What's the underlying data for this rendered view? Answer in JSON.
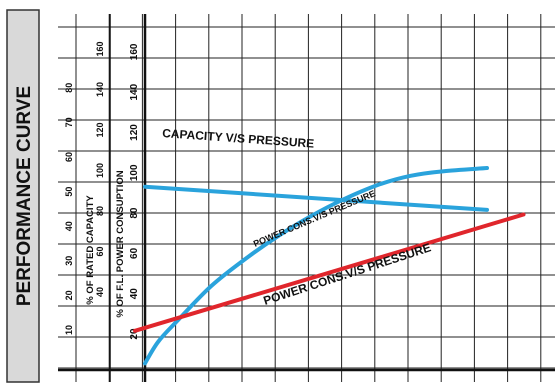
{
  "side_title": "PERFORMANCE CURVE",
  "chart_data": {
    "type": "line",
    "xlabel": "",
    "x_axis_title": "",
    "y_axes": [
      {
        "title": "% OF RATED CAPACITY",
        "ticks": [
          "10",
          "20",
          "30",
          "40",
          "50",
          "60",
          "70",
          "80"
        ]
      },
      {
        "title": "% OF F.L. POWER CONSUPTION",
        "ticks": [
          "40",
          "60",
          "80",
          "100",
          "120",
          "140",
          "160"
        ]
      },
      {
        "ticks": [
          "20",
          "40",
          "60",
          "80",
          "100",
          "120",
          "140",
          "160"
        ]
      }
    ],
    "ylim": [
      0,
      170
    ],
    "xlim": [
      0,
      12
    ],
    "grid": true,
    "series": [
      {
        "name": "CAPACITY V/S PRESSURE",
        "color": "#2aa3dc",
        "x": [
          0,
          10.3
        ],
        "y": [
          117,
          102
        ]
      },
      {
        "name": "POWER CONS.V/S PRESSURE",
        "color": "#2aa3dc",
        "x": [
          0,
          0.4,
          1,
          2,
          3,
          4,
          5,
          6,
          7,
          8,
          9,
          10.3
        ],
        "y": [
          3,
          17,
          31,
          53,
          70,
          85,
          98,
          109,
          118,
          124,
          127,
          129
        ]
      },
      {
        "name": "POWER CONS.V/S PRESSURE",
        "color": "#e0262c",
        "x": [
          -0.3,
          11.4
        ],
        "y": [
          24,
          99
        ]
      }
    ]
  }
}
